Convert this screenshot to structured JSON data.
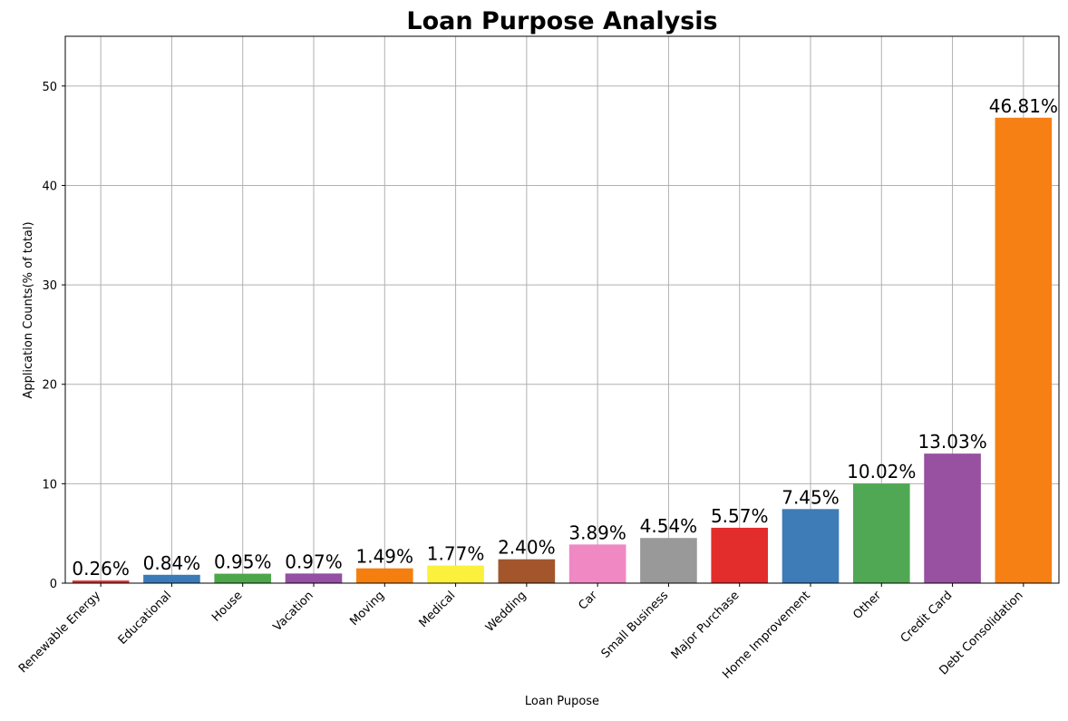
{
  "chart_data": {
    "type": "bar",
    "title": "Loan Purpose Analysis",
    "xlabel": "Loan Pupose",
    "ylabel": "Application Counts(% of total)",
    "ylim": [
      0,
      55
    ],
    "yticks": [
      "0",
      "10",
      "20",
      "30",
      "40",
      "50"
    ],
    "grid": true,
    "legend": "none",
    "categories": [
      "Renewable Energy",
      "Educational",
      "House",
      "Vacation",
      "Moving",
      "Medical",
      "Wedding",
      "Car",
      "Small Business",
      "Major Purchase",
      "Home Improvement",
      "Other",
      "Credit Card",
      "Debt Consolidation"
    ],
    "values": [
      0.26,
      0.84,
      0.95,
      0.97,
      1.49,
      1.77,
      2.4,
      3.89,
      4.54,
      5.57,
      7.45,
      10.02,
      13.03,
      46.81
    ],
    "data_labels": [
      "0.26%",
      "0.84%",
      "0.95%",
      "0.97%",
      "1.49%",
      "1.77%",
      "2.40%",
      "3.89%",
      "4.54%",
      "5.57%",
      "7.45%",
      "10.02%",
      "13.03%",
      "46.81%"
    ],
    "colors": [
      "#d62f30",
      "#3b7ab8",
      "#4ea64a",
      "#9450a2",
      "#f47f0e",
      "#fbf03c",
      "#a3562c",
      "#f088c4",
      "#999999",
      "#e22d2c",
      "#3d7cb6",
      "#50a855",
      "#9751a0",
      "#f68014"
    ]
  }
}
